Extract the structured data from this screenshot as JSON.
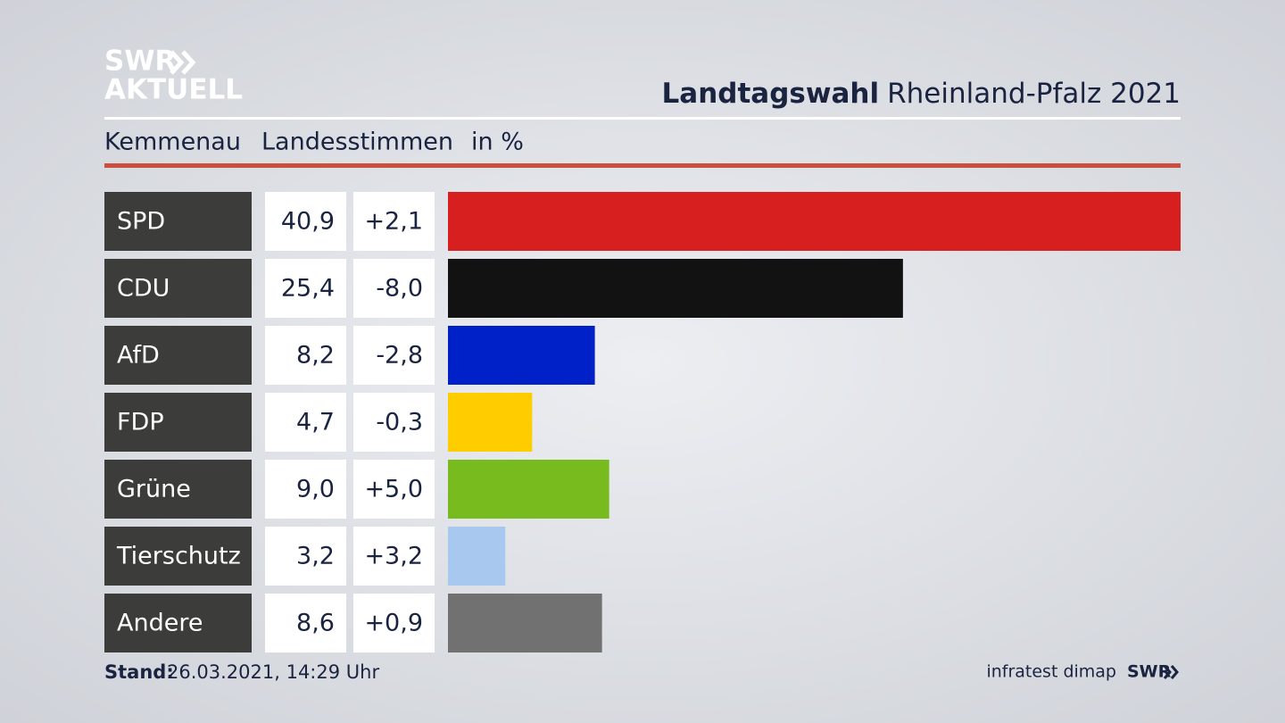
{
  "logo": {
    "line1": "SWR",
    "line2": "AKTUELL"
  },
  "chart_data": {
    "type": "bar",
    "orientation": "horizontal",
    "title_bold": "Landtagswahl",
    "title": "Rheinland-Pfalz 2021",
    "subtitle": [
      "Kemmenau",
      "Landesstimmen",
      "in %"
    ],
    "categories": [
      "SPD",
      "CDU",
      "AfD",
      "FDP",
      "Grüne",
      "Tierschutz",
      "Andere"
    ],
    "values": [
      40.9,
      25.4,
      8.2,
      4.7,
      9.0,
      3.2,
      8.6
    ],
    "value_labels": [
      "40,9",
      "25,4",
      "8,2",
      "4,7",
      "9,0",
      "3,2",
      "8,6"
    ],
    "changes": [
      "+2,1",
      "-8,0",
      "-2,8",
      "-0,3",
      "+5,0",
      "+3,2",
      "+0,9"
    ],
    "colors": [
      "#d71f1f",
      "#121212",
      "#0021c8",
      "#ffcc00",
      "#78bb1e",
      "#a9c8ef",
      "#717171"
    ],
    "xlim": [
      0,
      40.9
    ]
  },
  "footer": {
    "stand_label": "Stand:",
    "stand": "26.03.2021, 14:29 Uhr",
    "source": "infratest dimap",
    "brand": "SWR"
  }
}
